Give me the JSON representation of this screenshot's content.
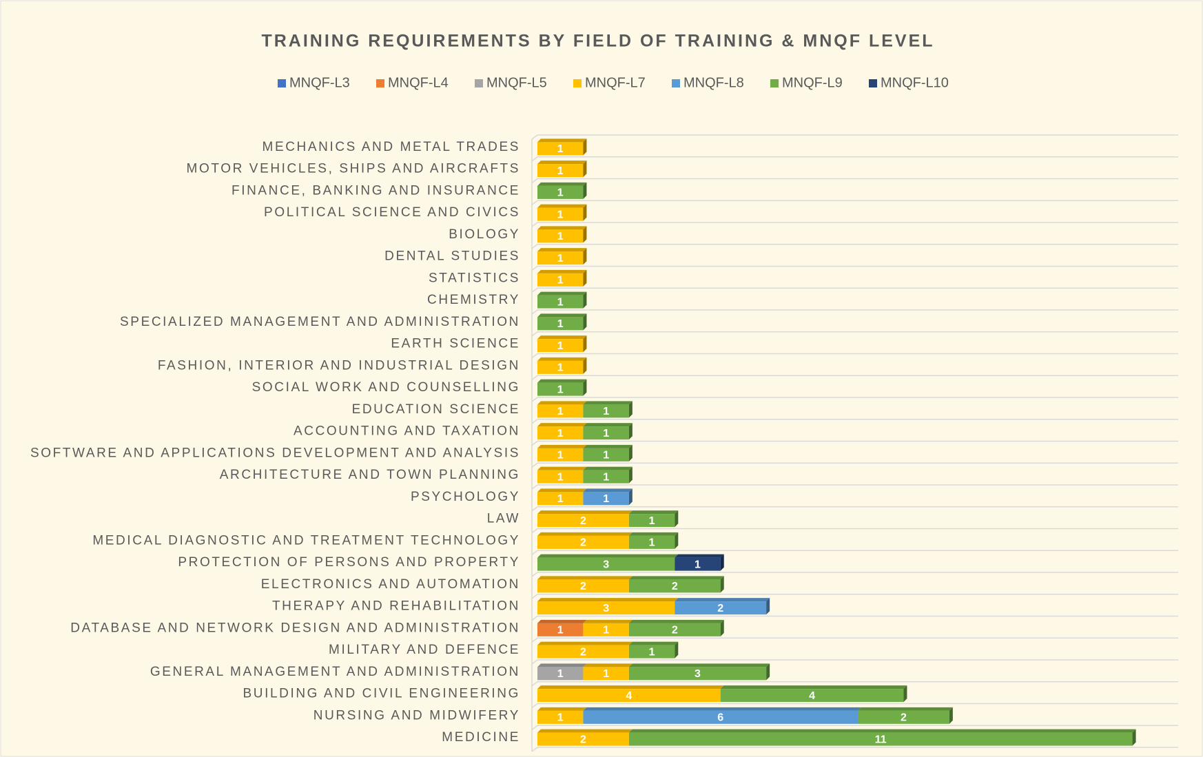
{
  "chart_data": {
    "type": "stacked-bar-horizontal",
    "title": "TRAINING REQUIREMENTS BY FIELD OF TRAINING & MNQF LEVEL",
    "categories": [
      "MECHANICS AND METAL TRADES",
      "MOTOR VEHICLES, SHIPS AND AIRCRAFTS",
      "FINANCE, BANKING AND INSURANCE",
      "POLITICAL SCIENCE AND CIVICS",
      "BIOLOGY",
      "DENTAL STUDIES",
      "STATISTICS",
      "CHEMISTRY",
      "SPECIALIZED MANAGEMENT AND ADMINISTRATION",
      "EARTH SCIENCE",
      "FASHION, INTERIOR AND INDUSTRIAL DESIGN",
      "SOCIAL WORK AND COUNSELLING",
      "EDUCATION SCIENCE",
      "ACCOUNTING AND TAXATION",
      "SOFTWARE AND APPLICATIONS DEVELOPMENT AND ANALYSIS",
      "ARCHITECTURE AND TOWN PLANNING",
      "PSYCHOLOGY",
      "LAW",
      "MEDICAL DIAGNOSTIC AND TREATMENT TECHNOLOGY",
      "PROTECTION OF PERSONS AND PROPERTY",
      "ELECTRONICS AND AUTOMATION",
      "THERAPY AND REHABILITATION",
      "DATABASE AND NETWORK DESIGN AND ADMINISTRATION",
      "MILITARY AND DEFENCE",
      "GENERAL MANAGEMENT AND ADMINISTRATION",
      "BUILDING AND CIVIL ENGINEERING",
      "NURSING AND MIDWIFERY",
      "MEDICINE"
    ],
    "series": [
      {
        "name": "MNQF-L3",
        "color": "#4472c4",
        "values": [
          null,
          null,
          null,
          null,
          null,
          null,
          null,
          null,
          null,
          null,
          null,
          null,
          null,
          null,
          null,
          null,
          null,
          null,
          null,
          null,
          null,
          null,
          null,
          null,
          null,
          null,
          null,
          null
        ]
      },
      {
        "name": "MNQF-L4",
        "color": "#ed7d31",
        "values": [
          null,
          null,
          null,
          null,
          null,
          null,
          null,
          null,
          null,
          null,
          null,
          null,
          null,
          null,
          null,
          null,
          null,
          null,
          null,
          null,
          null,
          null,
          1,
          null,
          null,
          null,
          null,
          null
        ]
      },
      {
        "name": "MNQF-L5",
        "color": "#a5a5a5",
        "values": [
          null,
          null,
          null,
          null,
          null,
          null,
          null,
          null,
          null,
          null,
          null,
          null,
          null,
          null,
          null,
          null,
          null,
          null,
          null,
          null,
          null,
          null,
          null,
          null,
          1,
          null,
          null,
          null
        ]
      },
      {
        "name": "MNQF-L7",
        "color": "#ffc000",
        "values": [
          1,
          1,
          null,
          1,
          1,
          1,
          1,
          null,
          null,
          1,
          1,
          null,
          1,
          1,
          1,
          1,
          1,
          2,
          2,
          null,
          2,
          3,
          1,
          2,
          1,
          4,
          1,
          2
        ]
      },
      {
        "name": "MNQF-L8",
        "color": "#5b9bd5",
        "values": [
          null,
          null,
          null,
          null,
          null,
          null,
          null,
          null,
          null,
          null,
          null,
          null,
          null,
          null,
          null,
          null,
          1,
          null,
          null,
          null,
          null,
          2,
          null,
          null,
          null,
          null,
          6,
          null
        ]
      },
      {
        "name": "MNQF-L9",
        "color": "#70ad47",
        "values": [
          null,
          null,
          1,
          null,
          null,
          null,
          null,
          1,
          1,
          null,
          null,
          1,
          1,
          1,
          1,
          1,
          null,
          1,
          1,
          3,
          2,
          null,
          2,
          1,
          3,
          4,
          2,
          11
        ]
      },
      {
        "name": "MNQF-L10",
        "color": "#264478",
        "values": [
          null,
          null,
          null,
          null,
          null,
          null,
          null,
          null,
          null,
          null,
          null,
          null,
          null,
          null,
          null,
          null,
          null,
          null,
          null,
          1,
          null,
          null,
          null,
          null,
          null,
          null,
          null,
          null
        ]
      }
    ],
    "xlim": [
      0,
      14
    ]
  }
}
